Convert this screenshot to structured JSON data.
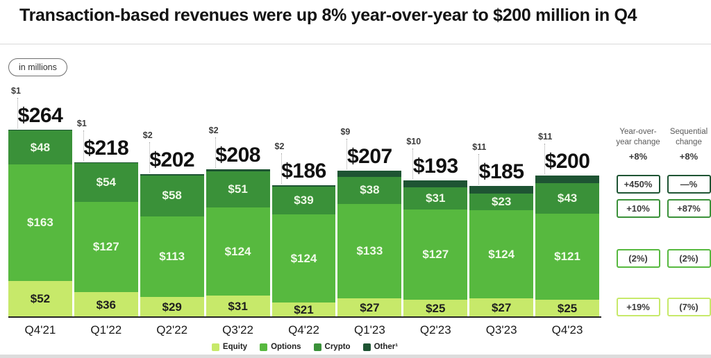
{
  "page": {
    "title": "Transaction-based revenues were up 8% year-over-year to $200 million in Q4",
    "units_badge": "in millions"
  },
  "chart_data": {
    "type": "bar",
    "stacked": true,
    "title": "Transaction-based revenues were up 8% year-over-year to $200 million in Q4",
    "unit": "USD millions",
    "value_prefix": "$",
    "categories": [
      "Q4'21",
      "Q1'22",
      "Q2'22",
      "Q3'22",
      "Q4'22",
      "Q1'23",
      "Q2'23",
      "Q3'23",
      "Q4'23"
    ],
    "series": [
      {
        "name": "Equity",
        "color": "#c7e96a",
        "label_color": "#1f1f1f",
        "values": [
          52,
          36,
          29,
          31,
          21,
          27,
          25,
          27,
          25
        ]
      },
      {
        "name": "Options",
        "color": "#57b93f",
        "label_color": "#f0fae9",
        "values": [
          163,
          127,
          113,
          124,
          124,
          133,
          127,
          124,
          121
        ]
      },
      {
        "name": "Crypto",
        "color": "#3a9139",
        "label_color": "#eef8e6",
        "values": [
          48,
          54,
          58,
          51,
          39,
          38,
          31,
          23,
          43
        ]
      },
      {
        "name": "Other",
        "color": "#1e5433",
        "label_color": "#ffffff",
        "labels_hidden": true,
        "values": [
          1,
          1,
          2,
          2,
          2,
          9,
          10,
          11,
          11
        ]
      }
    ],
    "totals": [
      264,
      218,
      202,
      208,
      186,
      207,
      193,
      185,
      200
    ],
    "totals_display": [
      "$264",
      "$218",
      "$202",
      "$208",
      "$186",
      "$207",
      "$193",
      "$185",
      "$200"
    ],
    "other_callouts": [
      "$1",
      "$1",
      "$2",
      "$2",
      "$2",
      "$9",
      "$10",
      "$11",
      "$11"
    ],
    "ylim": [
      0,
      280
    ],
    "grid": false,
    "legend_position": "bottom"
  },
  "legend": {
    "items": [
      {
        "label": "Equity",
        "color": "#c7e96a"
      },
      {
        "label": "Options",
        "color": "#57b93f"
      },
      {
        "label": "Crypto",
        "color": "#3a9139"
      },
      {
        "label": "Other¹",
        "color": "#1e5433"
      }
    ]
  },
  "change_table": {
    "columns": [
      "Year-over-year change",
      "Sequential change"
    ],
    "rows": [
      {
        "segment": "Total",
        "yoy": "+8%",
        "seq": "+8%",
        "boxed": false,
        "color": ""
      },
      {
        "segment": "Other",
        "yoy": "+450%",
        "seq": "—%",
        "boxed": true,
        "color": "#1e5433"
      },
      {
        "segment": "Crypto",
        "yoy": "+10%",
        "seq": "+87%",
        "boxed": true,
        "color": "#3a9139"
      },
      {
        "segment": "Options",
        "yoy": "(2%)",
        "seq": "(2%)",
        "boxed": true,
        "color": "#57b93f"
      },
      {
        "segment": "Equity",
        "yoy": "+19%",
        "seq": "(7%)",
        "boxed": true,
        "color": "#c7e96a"
      }
    ]
  }
}
